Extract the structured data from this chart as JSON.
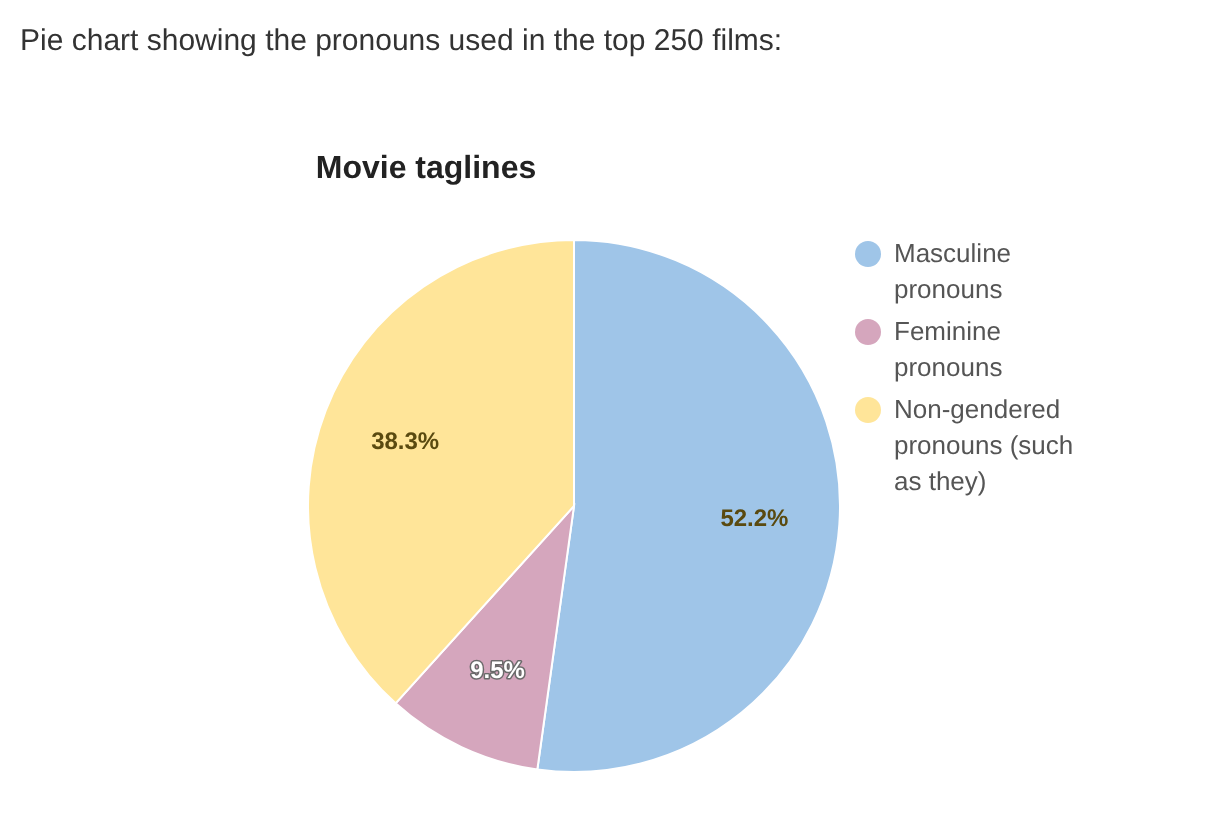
{
  "chart_data": {
    "type": "pie",
    "subtitle": "Pie chart showing the pronouns used in the top 250 films:",
    "title": "Movie taglines",
    "categories": [
      "Masculine pronouns",
      "Feminine pronouns",
      "Non-gendered pronouns (such as they)"
    ],
    "values": [
      52.2,
      9.5,
      38.3
    ],
    "colors": [
      "#9fc5e8",
      "#d5a6bd",
      "#ffe599"
    ],
    "value_labels": [
      "52.2%",
      "9.5%",
      "38.3%"
    ],
    "legend": "top right"
  }
}
